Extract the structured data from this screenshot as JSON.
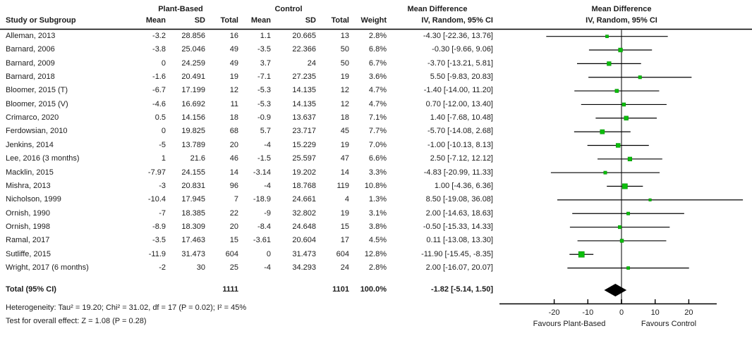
{
  "header": {
    "study_col": "Study or Subgroup",
    "group1": "Plant-Based",
    "group2": "Control",
    "col_mean1": "Mean",
    "col_sd1": "SD",
    "col_total1": "Total",
    "col_mean2": "Mean",
    "col_sd2": "SD",
    "col_total2": "Total",
    "col_weight": "Weight",
    "md_text_title": "Mean Difference",
    "md_text_sub": "IV, Random, 95% CI",
    "md_plot_title": "Mean Difference",
    "md_plot_sub": "IV, Random, 95% CI"
  },
  "chart_data": {
    "type": "scatter",
    "subtype": "forest-plot-meta-analysis",
    "effect_measure": "Mean Difference, IV, Random, 95% CI",
    "studies": [
      {
        "name": "Alleman, 2013",
        "mean_t": "-3.2",
        "sd_t": "28.856",
        "n_t": "16",
        "mean_c": "1.1",
        "sd_c": "20.665",
        "n_c": "13",
        "weight": "2.8%",
        "weight_val": 2.8,
        "ci": "-4.30 [-22.36, 13.76]",
        "md": -4.3,
        "lo": -22.36,
        "hi": 13.76
      },
      {
        "name": "Barnard, 2006",
        "mean_t": "-3.8",
        "sd_t": "25.046",
        "n_t": "49",
        "mean_c": "-3.5",
        "sd_c": "22.366",
        "n_c": "50",
        "weight": "6.8%",
        "weight_val": 6.8,
        "ci": "-0.30 [-9.66, 9.06]",
        "md": -0.3,
        "lo": -9.66,
        "hi": 9.06
      },
      {
        "name": "Barnard, 2009",
        "mean_t": "0",
        "sd_t": "24.259",
        "n_t": "49",
        "mean_c": "3.7",
        "sd_c": "24",
        "n_c": "50",
        "weight": "6.7%",
        "weight_val": 6.7,
        "ci": "-3.70 [-13.21, 5.81]",
        "md": -3.7,
        "lo": -13.21,
        "hi": 5.81
      },
      {
        "name": "Barnard, 2018",
        "mean_t": "-1.6",
        "sd_t": "20.491",
        "n_t": "19",
        "mean_c": "-7.1",
        "sd_c": "27.235",
        "n_c": "19",
        "weight": "3.6%",
        "weight_val": 3.6,
        "ci": "5.50 [-9.83, 20.83]",
        "md": 5.5,
        "lo": -9.83,
        "hi": 20.83
      },
      {
        "name": "Bloomer, 2015 (T)",
        "mean_t": "-6.7",
        "sd_t": "17.199",
        "n_t": "12",
        "mean_c": "-5.3",
        "sd_c": "14.135",
        "n_c": "12",
        "weight": "4.7%",
        "weight_val": 4.7,
        "ci": "-1.40 [-14.00, 11.20]",
        "md": -1.4,
        "lo": -14.0,
        "hi": 11.2
      },
      {
        "name": "Bloomer, 2015 (V)",
        "mean_t": "-4.6",
        "sd_t": "16.692",
        "n_t": "11",
        "mean_c": "-5.3",
        "sd_c": "14.135",
        "n_c": "12",
        "weight": "4.7%",
        "weight_val": 4.7,
        "ci": "0.70 [-12.00, 13.40]",
        "md": 0.7,
        "lo": -12.0,
        "hi": 13.4
      },
      {
        "name": "Crimarco, 2020",
        "mean_t": "0.5",
        "sd_t": "14.156",
        "n_t": "18",
        "mean_c": "-0.9",
        "sd_c": "13.637",
        "n_c": "18",
        "weight": "7.1%",
        "weight_val": 7.1,
        "ci": "1.40 [-7.68, 10.48]",
        "md": 1.4,
        "lo": -7.68,
        "hi": 10.48
      },
      {
        "name": "Ferdowsian, 2010",
        "mean_t": "0",
        "sd_t": "19.825",
        "n_t": "68",
        "mean_c": "5.7",
        "sd_c": "23.717",
        "n_c": "45",
        "weight": "7.7%",
        "weight_val": 7.7,
        "ci": "-5.70 [-14.08, 2.68]",
        "md": -5.7,
        "lo": -14.08,
        "hi": 2.68
      },
      {
        "name": "Jenkins, 2014",
        "mean_t": "-5",
        "sd_t": "13.789",
        "n_t": "20",
        "mean_c": "-4",
        "sd_c": "15.229",
        "n_c": "19",
        "weight": "7.0%",
        "weight_val": 7.0,
        "ci": "-1.00 [-10.13, 8.13]",
        "md": -1.0,
        "lo": -10.13,
        "hi": 8.13
      },
      {
        "name": "Lee, 2016 (3 months)",
        "mean_t": "1",
        "sd_t": "21.6",
        "n_t": "46",
        "mean_c": "-1.5",
        "sd_c": "25.597",
        "n_c": "47",
        "weight": "6.6%",
        "weight_val": 6.6,
        "ci": "2.50 [-7.12, 12.12]",
        "md": 2.5,
        "lo": -7.12,
        "hi": 12.12
      },
      {
        "name": "Macklin, 2015",
        "mean_t": "-7.97",
        "sd_t": "24.155",
        "n_t": "14",
        "mean_c": "-3.14",
        "sd_c": "19.202",
        "n_c": "14",
        "weight": "3.3%",
        "weight_val": 3.3,
        "ci": "-4.83 [-20.99, 11.33]",
        "md": -4.83,
        "lo": -20.99,
        "hi": 11.33
      },
      {
        "name": "Mishra, 2013",
        "mean_t": "-3",
        "sd_t": "20.831",
        "n_t": "96",
        "mean_c": "-4",
        "sd_c": "18.768",
        "n_c": "119",
        "weight": "10.8%",
        "weight_val": 10.8,
        "ci": "1.00 [-4.36, 6.36]",
        "md": 1.0,
        "lo": -4.36,
        "hi": 6.36
      },
      {
        "name": "Nicholson, 1999",
        "mean_t": "-10.4",
        "sd_t": "17.945",
        "n_t": "7",
        "mean_c": "-18.9",
        "sd_c": "24.661",
        "n_c": "4",
        "weight": "1.3%",
        "weight_val": 1.3,
        "ci": "8.50 [-19.08, 36.08]",
        "md": 8.5,
        "lo": -19.08,
        "hi": 36.08
      },
      {
        "name": "Ornish, 1990",
        "mean_t": "-7",
        "sd_t": "18.385",
        "n_t": "22",
        "mean_c": "-9",
        "sd_c": "32.802",
        "n_c": "19",
        "weight": "3.1%",
        "weight_val": 3.1,
        "ci": "2.00 [-14.63, 18.63]",
        "md": 2.0,
        "lo": -14.63,
        "hi": 18.63
      },
      {
        "name": "Ornish, 1998",
        "mean_t": "-8.9",
        "sd_t": "18.309",
        "n_t": "20",
        "mean_c": "-8.4",
        "sd_c": "24.648",
        "n_c": "15",
        "weight": "3.8%",
        "weight_val": 3.8,
        "ci": "-0.50 [-15.33, 14.33]",
        "md": -0.5,
        "lo": -15.33,
        "hi": 14.33
      },
      {
        "name": "Ramal, 2017",
        "mean_t": "-3.5",
        "sd_t": "17.463",
        "n_t": "15",
        "mean_c": "-3.61",
        "sd_c": "20.604",
        "n_c": "17",
        "weight": "4.5%",
        "weight_val": 4.5,
        "ci": "0.11 [-13.08, 13.30]",
        "md": 0.11,
        "lo": -13.08,
        "hi": 13.3
      },
      {
        "name": "Sutliffe, 2015",
        "mean_t": "-11.9",
        "sd_t": "31.473",
        "n_t": "604",
        "mean_c": "0",
        "sd_c": "31.473",
        "n_c": "604",
        "weight": "12.8%",
        "weight_val": 12.8,
        "ci": "-11.90 [-15.45, -8.35]",
        "md": -11.9,
        "lo": -15.45,
        "hi": -8.35
      },
      {
        "name": "Wright, 2017 (6 months)",
        "mean_t": "-2",
        "sd_t": "30",
        "n_t": "25",
        "mean_c": "-4",
        "sd_c": "34.293",
        "n_c": "24",
        "weight": "2.8%",
        "weight_val": 2.8,
        "ci": "2.00 [-16.07, 20.07]",
        "md": 2.0,
        "lo": -16.07,
        "hi": 20.07
      }
    ],
    "total": {
      "label": "Total (95% CI)",
      "n_t": "1111",
      "n_c": "1101",
      "weight": "100.0%",
      "ci": "-1.82 [-5.14, 1.50]",
      "md": -1.82,
      "lo": -5.14,
      "hi": 1.5
    },
    "axis": {
      "ticks": [
        -20,
        -10,
        0,
        10,
        20
      ],
      "xlim_drawn": [
        -36,
        28
      ],
      "favours_left": "Favours Plant-Based",
      "favours_right": "Favours Control"
    },
    "colors": {
      "square_green": "#0bbe0b",
      "square_border": "#089108",
      "zero_line_gray": "#7f7f7f",
      "line_black": "#000000",
      "diamond_black": "#000000"
    }
  },
  "footer": {
    "heterogeneity": "Heterogeneity: Tau² = 19.20; Chi² = 31.02, df = 17 (P = 0.02); I² = 45%",
    "overall_effect": "Test for overall effect: Z = 1.08 (P = 0.28)"
  }
}
